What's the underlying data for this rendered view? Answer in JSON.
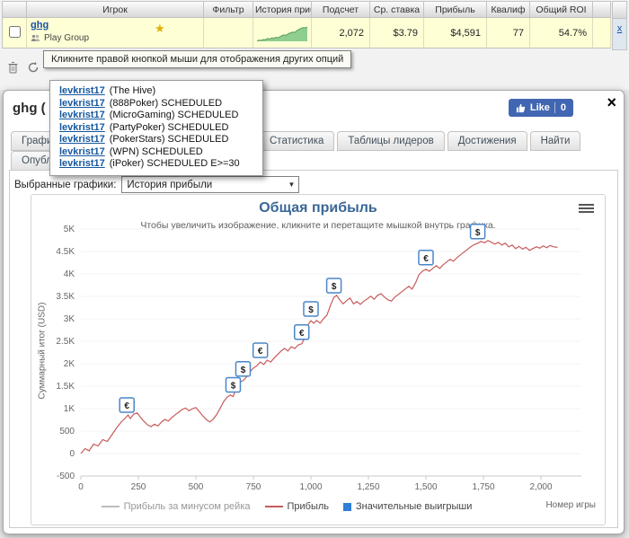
{
  "results_table": {
    "headers": {
      "player": "Игрок",
      "filter": "Фильтр",
      "history": "История прибыли",
      "count": "Подсчет",
      "avg_stake": "Ср. ставка",
      "profit": "Прибыль",
      "qualif": "Квалиф",
      "roi": "Общий ROI"
    },
    "row": {
      "player_name": "ghg",
      "player_group": "Play Group",
      "count": "2,072",
      "avg_stake": "$3.79",
      "profit": "$4,591",
      "qualif": "77",
      "roi": "54.7%",
      "remove_label": "x",
      "sparkline_color": "#8fce8f",
      "sparkline_stroke": "#55a055",
      "sparkline": [
        0.02,
        0.08,
        0.05,
        0.12,
        0.1,
        0.18,
        0.15,
        0.22,
        0.2,
        0.26,
        0.24,
        0.3,
        0.38,
        0.42,
        0.4,
        0.5,
        0.55,
        0.6,
        0.58,
        0.7,
        0.78,
        0.85,
        0.9,
        0.88,
        0.93
      ]
    }
  },
  "tooltip": {
    "text": "Кликните правой кнопкой мыши для отображения других опций"
  },
  "player_menu": {
    "items": [
      {
        "name": "levkrist17",
        "detail": "(The Hive)"
      },
      {
        "name": "levkrist17",
        "detail": "(888Poker) SCHEDULED"
      },
      {
        "name": "levkrist17",
        "detail": "(MicroGaming) SCHEDULED"
      },
      {
        "name": "levkrist17",
        "detail": "(PartyPoker) SCHEDULED"
      },
      {
        "name": "levkrist17",
        "detail": "(PokerStars) SCHEDULED"
      },
      {
        "name": "levkrist17",
        "detail": "(WPN) SCHEDULED"
      },
      {
        "name": "levkrist17",
        "detail": "(iPoker) SCHEDULED E>=30"
      }
    ]
  },
  "panel": {
    "title": "ghg (",
    "close_label": "×",
    "like": {
      "label": "Like",
      "count": "0"
    },
    "tabs": [
      "Графики",
      "Статистика",
      "Таблицы лидеров",
      "Достижения",
      "Найти"
    ],
    "tabs_row2": [
      "Опубликовать"
    ],
    "graph_select": {
      "label": "Выбранные графики:",
      "value": "История прибыли"
    }
  },
  "icons": {
    "trophy_star": "★",
    "dropdown_arrow": "▼"
  },
  "chart_data": {
    "type": "line",
    "title": "Общая прибыль",
    "subtitle": "Чтобы увеличить изображение, кликните и перетащите мышкой внутрь графика.",
    "ylabel": "Суммарный итог (USD)",
    "xlabel": "Номер игры",
    "xlim": [
      0,
      2200
    ],
    "ylim": [
      -500,
      5000
    ],
    "grid": false,
    "x_ticks": {
      "values": [
        0,
        250,
        500,
        750,
        1000,
        1250,
        1500,
        1750,
        2000
      ],
      "labels": [
        "0",
        "250",
        "500",
        "750",
        "1,000",
        "1,250",
        "1,500",
        "1,750",
        "2,000"
      ]
    },
    "y_ticks": {
      "values": [
        -500,
        0,
        500,
        1000,
        1500,
        2000,
        2500,
        3000,
        3500,
        4000,
        4500,
        5000
      ],
      "labels": [
        "-500",
        "0",
        "500",
        "1K",
        "1.5K",
        "2K",
        "2.5K",
        "3K",
        "3.5K",
        "4K",
        "4.5K",
        "5K"
      ]
    },
    "series": [
      {
        "name": "Прибыль",
        "color": "#c75b5b",
        "points": [
          [
            0,
            0
          ],
          [
            18,
            110
          ],
          [
            36,
            60
          ],
          [
            55,
            210
          ],
          [
            75,
            170
          ],
          [
            95,
            310
          ],
          [
            115,
            270
          ],
          [
            135,
            420
          ],
          [
            155,
            570
          ],
          [
            175,
            700
          ],
          [
            195,
            800
          ],
          [
            205,
            860
          ],
          [
            215,
            780
          ],
          [
            230,
            880
          ],
          [
            245,
            905
          ],
          [
            260,
            800
          ],
          [
            275,
            715
          ],
          [
            290,
            640
          ],
          [
            305,
            600
          ],
          [
            320,
            655
          ],
          [
            335,
            615
          ],
          [
            350,
            700
          ],
          [
            365,
            760
          ],
          [
            380,
            725
          ],
          [
            395,
            800
          ],
          [
            410,
            865
          ],
          [
            425,
            920
          ],
          [
            440,
            980
          ],
          [
            455,
            1015
          ],
          [
            470,
            955
          ],
          [
            485,
            1000
          ],
          [
            500,
            1025
          ],
          [
            515,
            935
          ],
          [
            530,
            840
          ],
          [
            545,
            760
          ],
          [
            560,
            705
          ],
          [
            575,
            765
          ],
          [
            590,
            865
          ],
          [
            605,
            1005
          ],
          [
            620,
            1150
          ],
          [
            635,
            1255
          ],
          [
            650,
            1305
          ],
          [
            662,
            1270
          ],
          [
            675,
            1460
          ],
          [
            690,
            1590
          ],
          [
            705,
            1625
          ],
          [
            720,
            1705
          ],
          [
            735,
            1825
          ],
          [
            750,
            1905
          ],
          [
            765,
            1955
          ],
          [
            780,
            2040
          ],
          [
            795,
            1985
          ],
          [
            810,
            2080
          ],
          [
            825,
            2040
          ],
          [
            840,
            2125
          ],
          [
            855,
            2205
          ],
          [
            870,
            2280
          ],
          [
            885,
            2345
          ],
          [
            900,
            2285
          ],
          [
            915,
            2380
          ],
          [
            930,
            2340
          ],
          [
            945,
            2420
          ],
          [
            960,
            2445
          ],
          [
            975,
            2600
          ],
          [
            988,
            2870
          ],
          [
            1000,
            2960
          ],
          [
            1012,
            2905
          ],
          [
            1025,
            2965
          ],
          [
            1040,
            2905
          ],
          [
            1055,
            3005
          ],
          [
            1070,
            3085
          ],
          [
            1085,
            3305
          ],
          [
            1100,
            3480
          ],
          [
            1112,
            3525
          ],
          [
            1125,
            3425
          ],
          [
            1140,
            3335
          ],
          [
            1155,
            3405
          ],
          [
            1170,
            3465
          ],
          [
            1185,
            3335
          ],
          [
            1200,
            3385
          ],
          [
            1215,
            3325
          ],
          [
            1230,
            3395
          ],
          [
            1245,
            3445
          ],
          [
            1260,
            3505
          ],
          [
            1275,
            3435
          ],
          [
            1290,
            3525
          ],
          [
            1305,
            3560
          ],
          [
            1320,
            3485
          ],
          [
            1335,
            3425
          ],
          [
            1350,
            3395
          ],
          [
            1365,
            3485
          ],
          [
            1380,
            3545
          ],
          [
            1395,
            3605
          ],
          [
            1410,
            3665
          ],
          [
            1425,
            3725
          ],
          [
            1440,
            3665
          ],
          [
            1455,
            3805
          ],
          [
            1470,
            3985
          ],
          [
            1485,
            4065
          ],
          [
            1500,
            4105
          ],
          [
            1515,
            4060
          ],
          [
            1530,
            4125
          ],
          [
            1545,
            4185
          ],
          [
            1560,
            4125
          ],
          [
            1575,
            4205
          ],
          [
            1590,
            4265
          ],
          [
            1605,
            4325
          ],
          [
            1620,
            4285
          ],
          [
            1635,
            4365
          ],
          [
            1650,
            4425
          ],
          [
            1665,
            4485
          ],
          [
            1680,
            4545
          ],
          [
            1695,
            4605
          ],
          [
            1710,
            4655
          ],
          [
            1725,
            4685
          ],
          [
            1740,
            4725
          ],
          [
            1755,
            4695
          ],
          [
            1770,
            4745
          ],
          [
            1785,
            4705
          ],
          [
            1800,
            4665
          ],
          [
            1815,
            4705
          ],
          [
            1830,
            4645
          ],
          [
            1845,
            4685
          ],
          [
            1860,
            4605
          ],
          [
            1875,
            4645
          ],
          [
            1890,
            4565
          ],
          [
            1905,
            4615
          ],
          [
            1920,
            4555
          ],
          [
            1935,
            4595
          ],
          [
            1950,
            4525
          ],
          [
            1965,
            4565
          ],
          [
            1980,
            4605
          ],
          [
            1995,
            4575
          ],
          [
            2010,
            4625
          ],
          [
            2025,
            4585
          ],
          [
            2040,
            4635
          ],
          [
            2055,
            4605
          ],
          [
            2072,
            4591
          ]
        ]
      }
    ],
    "significant_wins": [
      {
        "x": 200,
        "y": 820,
        "symbol": "€"
      },
      {
        "x": 662,
        "y": 1270,
        "symbol": "$"
      },
      {
        "x": 705,
        "y": 1625,
        "symbol": "$"
      },
      {
        "x": 780,
        "y": 2040,
        "symbol": "€"
      },
      {
        "x": 960,
        "y": 2445,
        "symbol": "€"
      },
      {
        "x": 1000,
        "y": 2960,
        "symbol": "$"
      },
      {
        "x": 1100,
        "y": 3480,
        "symbol": "$"
      },
      {
        "x": 1500,
        "y": 4105,
        "symbol": "€"
      },
      {
        "x": 1725,
        "y": 4685,
        "symbol": "$"
      }
    ],
    "marker_border": "#4a86c8",
    "legend": [
      {
        "label": "Прибыль за минусом рейка",
        "type": "line",
        "color": "#bdbdbd"
      },
      {
        "label": "Прибыль",
        "type": "line",
        "color": "#c75b5b"
      },
      {
        "label": "Значительные выигрыши",
        "type": "square",
        "color": "#2f7ed8"
      }
    ]
  }
}
